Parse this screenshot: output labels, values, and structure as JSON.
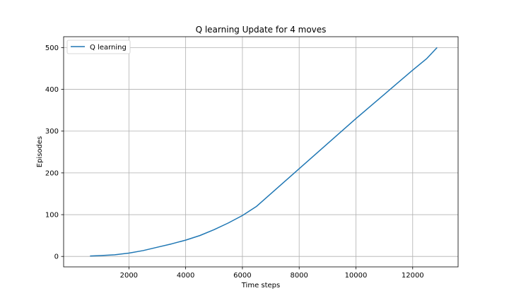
{
  "chart_data": {
    "type": "line",
    "title": "Q learning Update for 4 moves",
    "xlabel": "Time steps",
    "ylabel": "Episodes",
    "xlim": [
      -300,
      13600
    ],
    "ylim": [
      -25,
      526
    ],
    "xticks": [
      2000,
      4000,
      6000,
      8000,
      10000,
      12000
    ],
    "yticks": [
      0,
      100,
      200,
      300,
      400,
      500
    ],
    "grid": true,
    "legend_position": "upper-left",
    "series": [
      {
        "name": "Q learning",
        "color": "#1f77b4",
        "x": [
          630,
          1000,
          1500,
          2000,
          2500,
          3000,
          3500,
          4000,
          4500,
          5000,
          5500,
          6000,
          6500,
          7000,
          7500,
          8000,
          8500,
          9000,
          9500,
          10000,
          10500,
          11000,
          11500,
          12000,
          12500,
          12860
        ],
        "y": [
          1,
          2,
          4,
          8,
          14,
          22,
          30,
          39,
          50,
          64,
          80,
          98,
          120,
          150,
          180,
          210,
          240,
          270,
          300,
          330,
          359,
          388,
          417,
          446,
          474,
          500
        ]
      }
    ]
  }
}
